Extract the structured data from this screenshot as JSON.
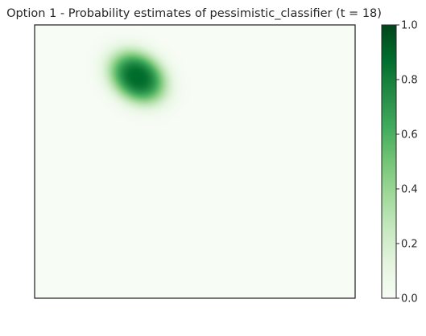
{
  "chart_data": {
    "type": "heatmap",
    "title": "Option 1 - Probability estimates of pessimistic_classifier (t = 18)",
    "xlabel": "",
    "ylabel": "",
    "colorbar": {
      "range": [
        0.0,
        1.0
      ],
      "ticks": [
        "0.0",
        "0.2",
        "0.4",
        "0.6",
        "0.8",
        "1.0"
      ],
      "colors": [
        "#f7fcf5",
        "#e5f5e0",
        "#c7e9c0",
        "#a1d99b",
        "#74c476",
        "#41ab5d",
        "#238b45",
        "#006d2c",
        "#00441b"
      ]
    },
    "grid": false,
    "blobs": [
      {
        "cx": 0.32,
        "cy": 0.19,
        "sx": 0.085,
        "sy": 0.11,
        "rotation_deg": -35,
        "peak": 0.88
      }
    ]
  }
}
